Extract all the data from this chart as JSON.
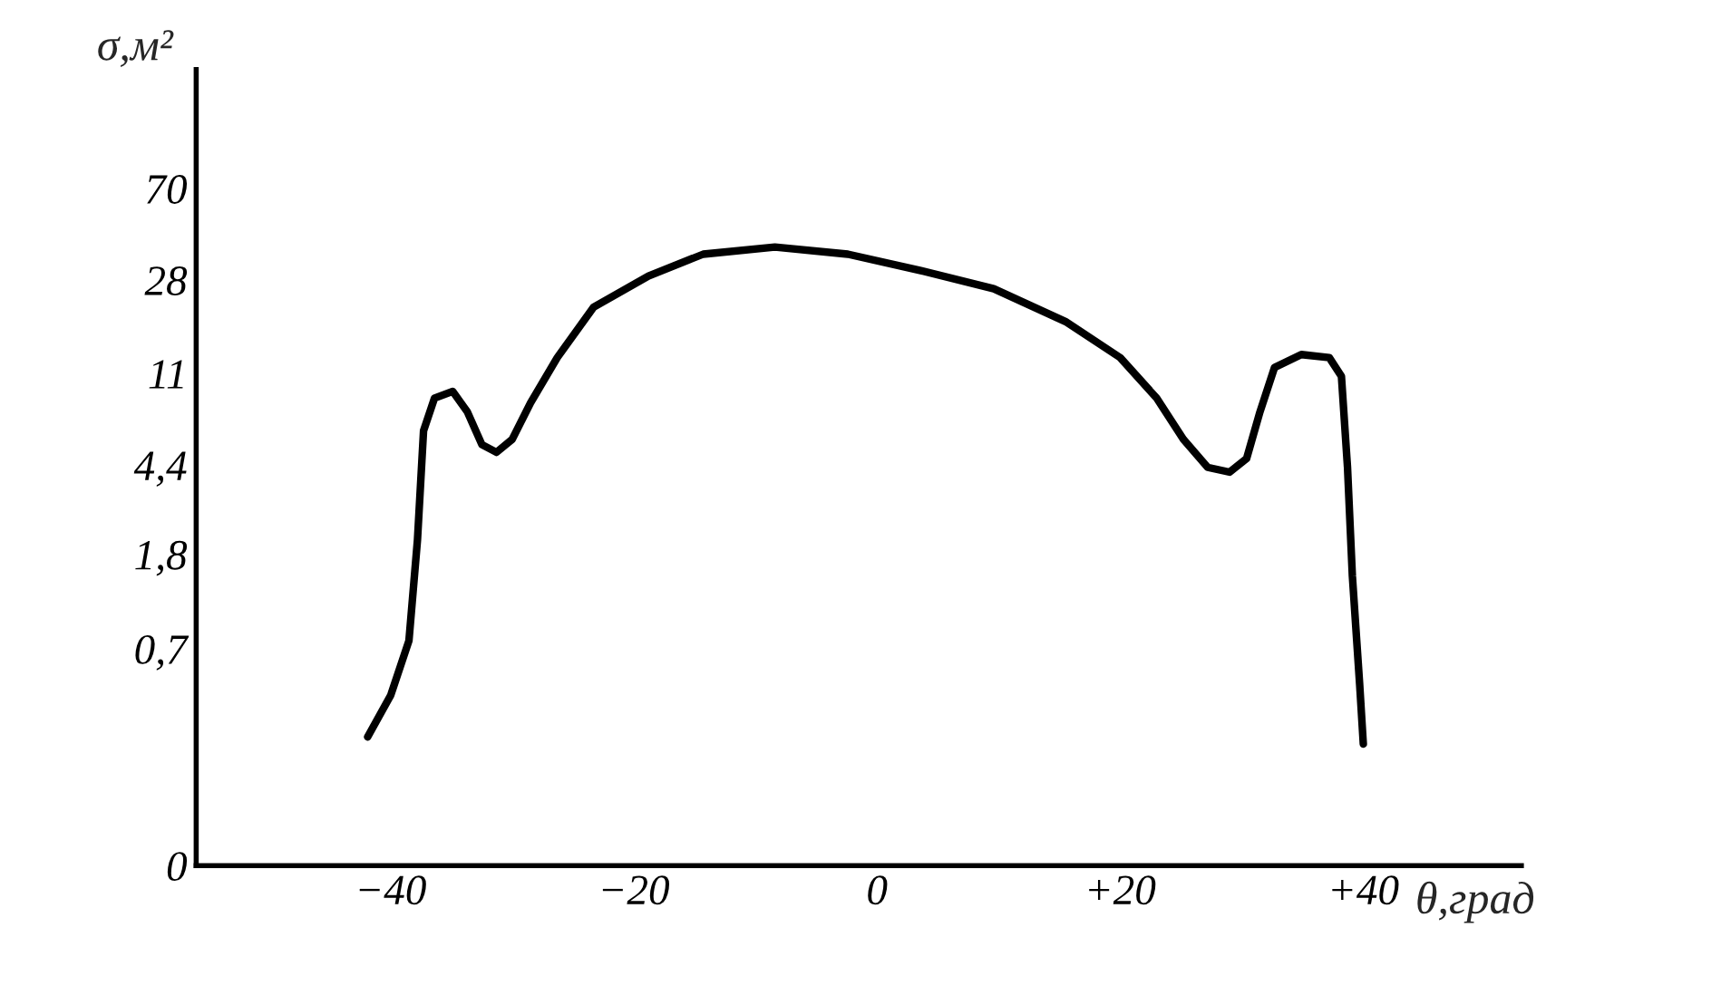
{
  "chart_data": {
    "type": "line",
    "xlabel": "θ,град",
    "ylabel": "σ,м²",
    "series": [
      {
        "color": "#000000",
        "x": [
          -41.9,
          -40,
          -38.5,
          -37.8,
          -37.3,
          -36.4,
          -34.9,
          -33.7,
          -32.5,
          -31.3,
          -30,
          -28.5,
          -26.3,
          -23.3,
          -18.8,
          -14.3,
          -8.4,
          -2.4,
          3.6,
          9.6,
          15.5,
          20,
          23,
          25.2,
          27.2,
          29,
          30.4,
          31.5,
          32.7,
          34.9,
          37.2,
          38.2,
          38.7,
          39.1,
          39.7,
          40.0
        ],
        "values": [
          0.29,
          0.44,
          0.76,
          2.08,
          6.2,
          8.6,
          9.2,
          7.5,
          5.4,
          5.0,
          5.7,
          8.2,
          12.9,
          21.4,
          29.2,
          36.3,
          39,
          36.3,
          30.8,
          25.7,
          18.5,
          12.9,
          8.6,
          5.7,
          4.3,
          4.1,
          4.7,
          7.5,
          11.7,
          13.3,
          12.9,
          10.7,
          4.3,
          1.45,
          0.49,
          0.27
        ]
      }
    ],
    "log": "y",
    "xlim": [
      -56,
      53
    ],
    "ylim": [
      0.08,
      230
    ],
    "xticks": [
      {
        "value": -40,
        "label": "−40"
      },
      {
        "value": -20,
        "label": "−20"
      },
      0,
      {
        "value": 20,
        "label": "+20"
      },
      {
        "value": 40,
        "label": "+40"
      }
    ],
    "yticks": [
      {
        "value": 0.08,
        "label": "0"
      },
      {
        "value": 0.7,
        "label": "0,7"
      },
      {
        "value": 1.8,
        "label": "1,8"
      },
      {
        "value": 4.4,
        "label": "4,4"
      },
      11,
      28,
      70
    ],
    "grid": false,
    "legend": false,
    "marker": "none",
    "line_style": "solid"
  }
}
